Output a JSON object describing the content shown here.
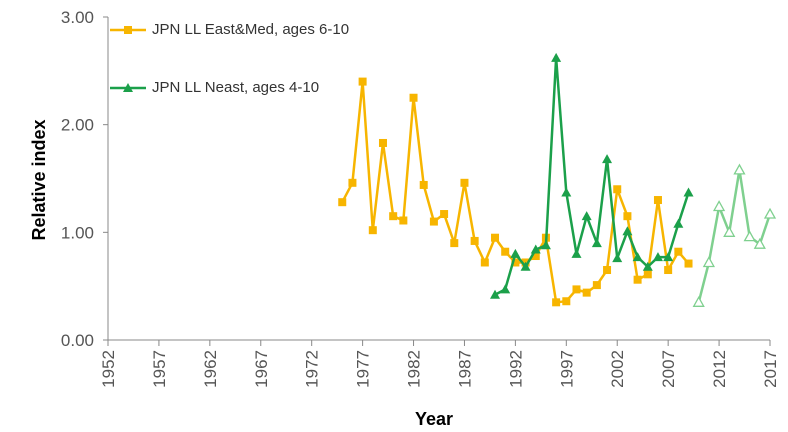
{
  "chart_data": {
    "type": "line",
    "ylabel": "Relative index",
    "xlabel": "Year",
    "xlim": [
      1952,
      2017
    ],
    "xticks": [
      1952,
      1957,
      1962,
      1967,
      1972,
      1977,
      1982,
      1987,
      1992,
      1997,
      2002,
      2007,
      2012,
      2017
    ],
    "ylim": [
      0,
      3
    ],
    "yticks": [
      {
        "value": 0,
        "label": "0.00"
      },
      {
        "value": 1,
        "label": "1.00"
      },
      {
        "value": 2,
        "label": "2.00"
      },
      {
        "value": 3,
        "label": "3.00"
      }
    ],
    "legend": "top-left",
    "series": [
      {
        "name": "JPN LL East&Med, ages 6-10",
        "color": "#f7b500",
        "marker": "square",
        "x": [
          1975,
          1976,
          1977,
          1978,
          1979,
          1980,
          1981,
          1982,
          1983,
          1984,
          1985,
          1986,
          1987,
          1988,
          1989,
          1990,
          1991,
          1992,
          1993,
          1994,
          1995,
          1996,
          1997,
          1998,
          1999,
          2000,
          2001,
          2002,
          2003,
          2004,
          2005,
          2006,
          2007,
          2008,
          2009
        ],
        "values": [
          1.28,
          1.46,
          2.4,
          1.02,
          1.83,
          1.15,
          1.11,
          2.25,
          1.44,
          1.1,
          1.17,
          0.9,
          1.46,
          0.92,
          0.72,
          0.95,
          0.82,
          0.72,
          0.72,
          0.78,
          0.95,
          0.35,
          0.36,
          0.47,
          0.44,
          0.51,
          0.65,
          1.4,
          1.15,
          0.56,
          0.61,
          1.3,
          0.65,
          0.82,
          0.71
        ]
      },
      {
        "name": "JPN LL Neast, ages 4-10",
        "color": "#1ba04a",
        "marker": "triangle",
        "x": [
          1990,
          1991,
          1992,
          1993,
          1994,
          1995,
          1996,
          1997,
          1998,
          1999,
          2000,
          2001,
          2002,
          2003,
          2004,
          2005,
          2006,
          2007,
          2008,
          2009
        ],
        "values": [
          0.42,
          0.47,
          0.8,
          0.68,
          0.84,
          0.88,
          2.62,
          1.37,
          0.8,
          1.15,
          0.9,
          1.68,
          0.76,
          1.01,
          0.77,
          0.68,
          0.77,
          0.77,
          1.08,
          1.37
        ]
      },
      {
        "color": "#7fd08f",
        "marker": "open-triangle",
        "x": [
          2010,
          2011,
          2012,
          2013,
          2014,
          2015,
          2016,
          2017
        ],
        "values": [
          0.35,
          0.72,
          1.24,
          1.0,
          1.58,
          0.96,
          0.89,
          1.17
        ]
      }
    ]
  }
}
